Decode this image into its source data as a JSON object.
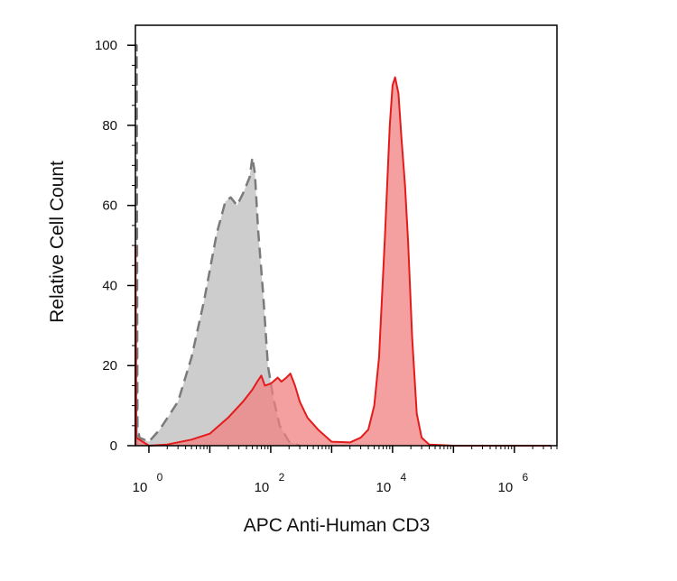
{
  "chart_data": {
    "type": "area",
    "title": "",
    "xlabel": "APC Anti-Human CD3",
    "ylabel": "Relative Cell Count",
    "xscale": "log",
    "xlim": [
      0.6,
      5000000
    ],
    "ylim": [
      0,
      105
    ],
    "grid": false,
    "legend": "none",
    "y_ticks": [
      0,
      20,
      40,
      60,
      80,
      100
    ],
    "x_ticks": [
      {
        "base": "10",
        "exp": "0",
        "value": 1
      },
      {
        "base": "10",
        "exp": "2",
        "value": 100
      },
      {
        "base": "10",
        "exp": "4",
        "value": 10000
      },
      {
        "base": "10",
        "exp": "6",
        "value": 1000000
      }
    ],
    "colors": {
      "isotype_fill": "#c8c8c8",
      "isotype_line": "#7a7a7a",
      "stained_fill": "#f08080",
      "stained_line": "#e31b1b",
      "axis": "#000000"
    },
    "series": [
      {
        "style": "gray-dashed",
        "points": [
          [
            0.63,
            0
          ],
          [
            0.63,
            100
          ],
          [
            0.65,
            5
          ],
          [
            0.7,
            2
          ],
          [
            1,
            1
          ],
          [
            1.5,
            4
          ],
          [
            3,
            11
          ],
          [
            5,
            22
          ],
          [
            8,
            36
          ],
          [
            13,
            53
          ],
          [
            18,
            61
          ],
          [
            22,
            62
          ],
          [
            28,
            60
          ],
          [
            35,
            63
          ],
          [
            45,
            67
          ],
          [
            50,
            72
          ],
          [
            55,
            68
          ],
          [
            62,
            54
          ],
          [
            75,
            38
          ],
          [
            90,
            20
          ],
          [
            110,
            12
          ],
          [
            140,
            5
          ],
          [
            200,
            1
          ],
          [
            300,
            0
          ]
        ]
      },
      {
        "style": "red-solid",
        "points": [
          [
            0.6,
            0
          ],
          [
            0.6,
            50
          ],
          [
            0.62,
            2
          ],
          [
            1,
            0
          ],
          [
            2,
            0.3
          ],
          [
            5,
            1.5
          ],
          [
            10,
            3
          ],
          [
            20,
            7
          ],
          [
            35,
            11
          ],
          [
            50,
            14
          ],
          [
            60,
            16
          ],
          [
            70,
            17.5
          ],
          [
            80,
            15
          ],
          [
            100,
            15.5
          ],
          [
            130,
            17
          ],
          [
            150,
            16
          ],
          [
            180,
            17
          ],
          [
            210,
            18
          ],
          [
            250,
            15
          ],
          [
            300,
            11
          ],
          [
            400,
            7
          ],
          [
            600,
            4
          ],
          [
            1000,
            1
          ],
          [
            2000,
            0.8
          ],
          [
            3000,
            2
          ],
          [
            4000,
            4
          ],
          [
            5000,
            10
          ],
          [
            6000,
            22
          ],
          [
            7500,
            52
          ],
          [
            9000,
            80
          ],
          [
            10000,
            90
          ],
          [
            11000,
            92
          ],
          [
            12500,
            88
          ],
          [
            14000,
            77
          ],
          [
            16000,
            65
          ],
          [
            18000,
            51
          ],
          [
            21000,
            27
          ],
          [
            25000,
            8
          ],
          [
            30000,
            2
          ],
          [
            40000,
            0.3
          ],
          [
            100000,
            0
          ],
          [
            1000000,
            0
          ],
          [
            4000000,
            0
          ]
        ]
      }
    ]
  }
}
